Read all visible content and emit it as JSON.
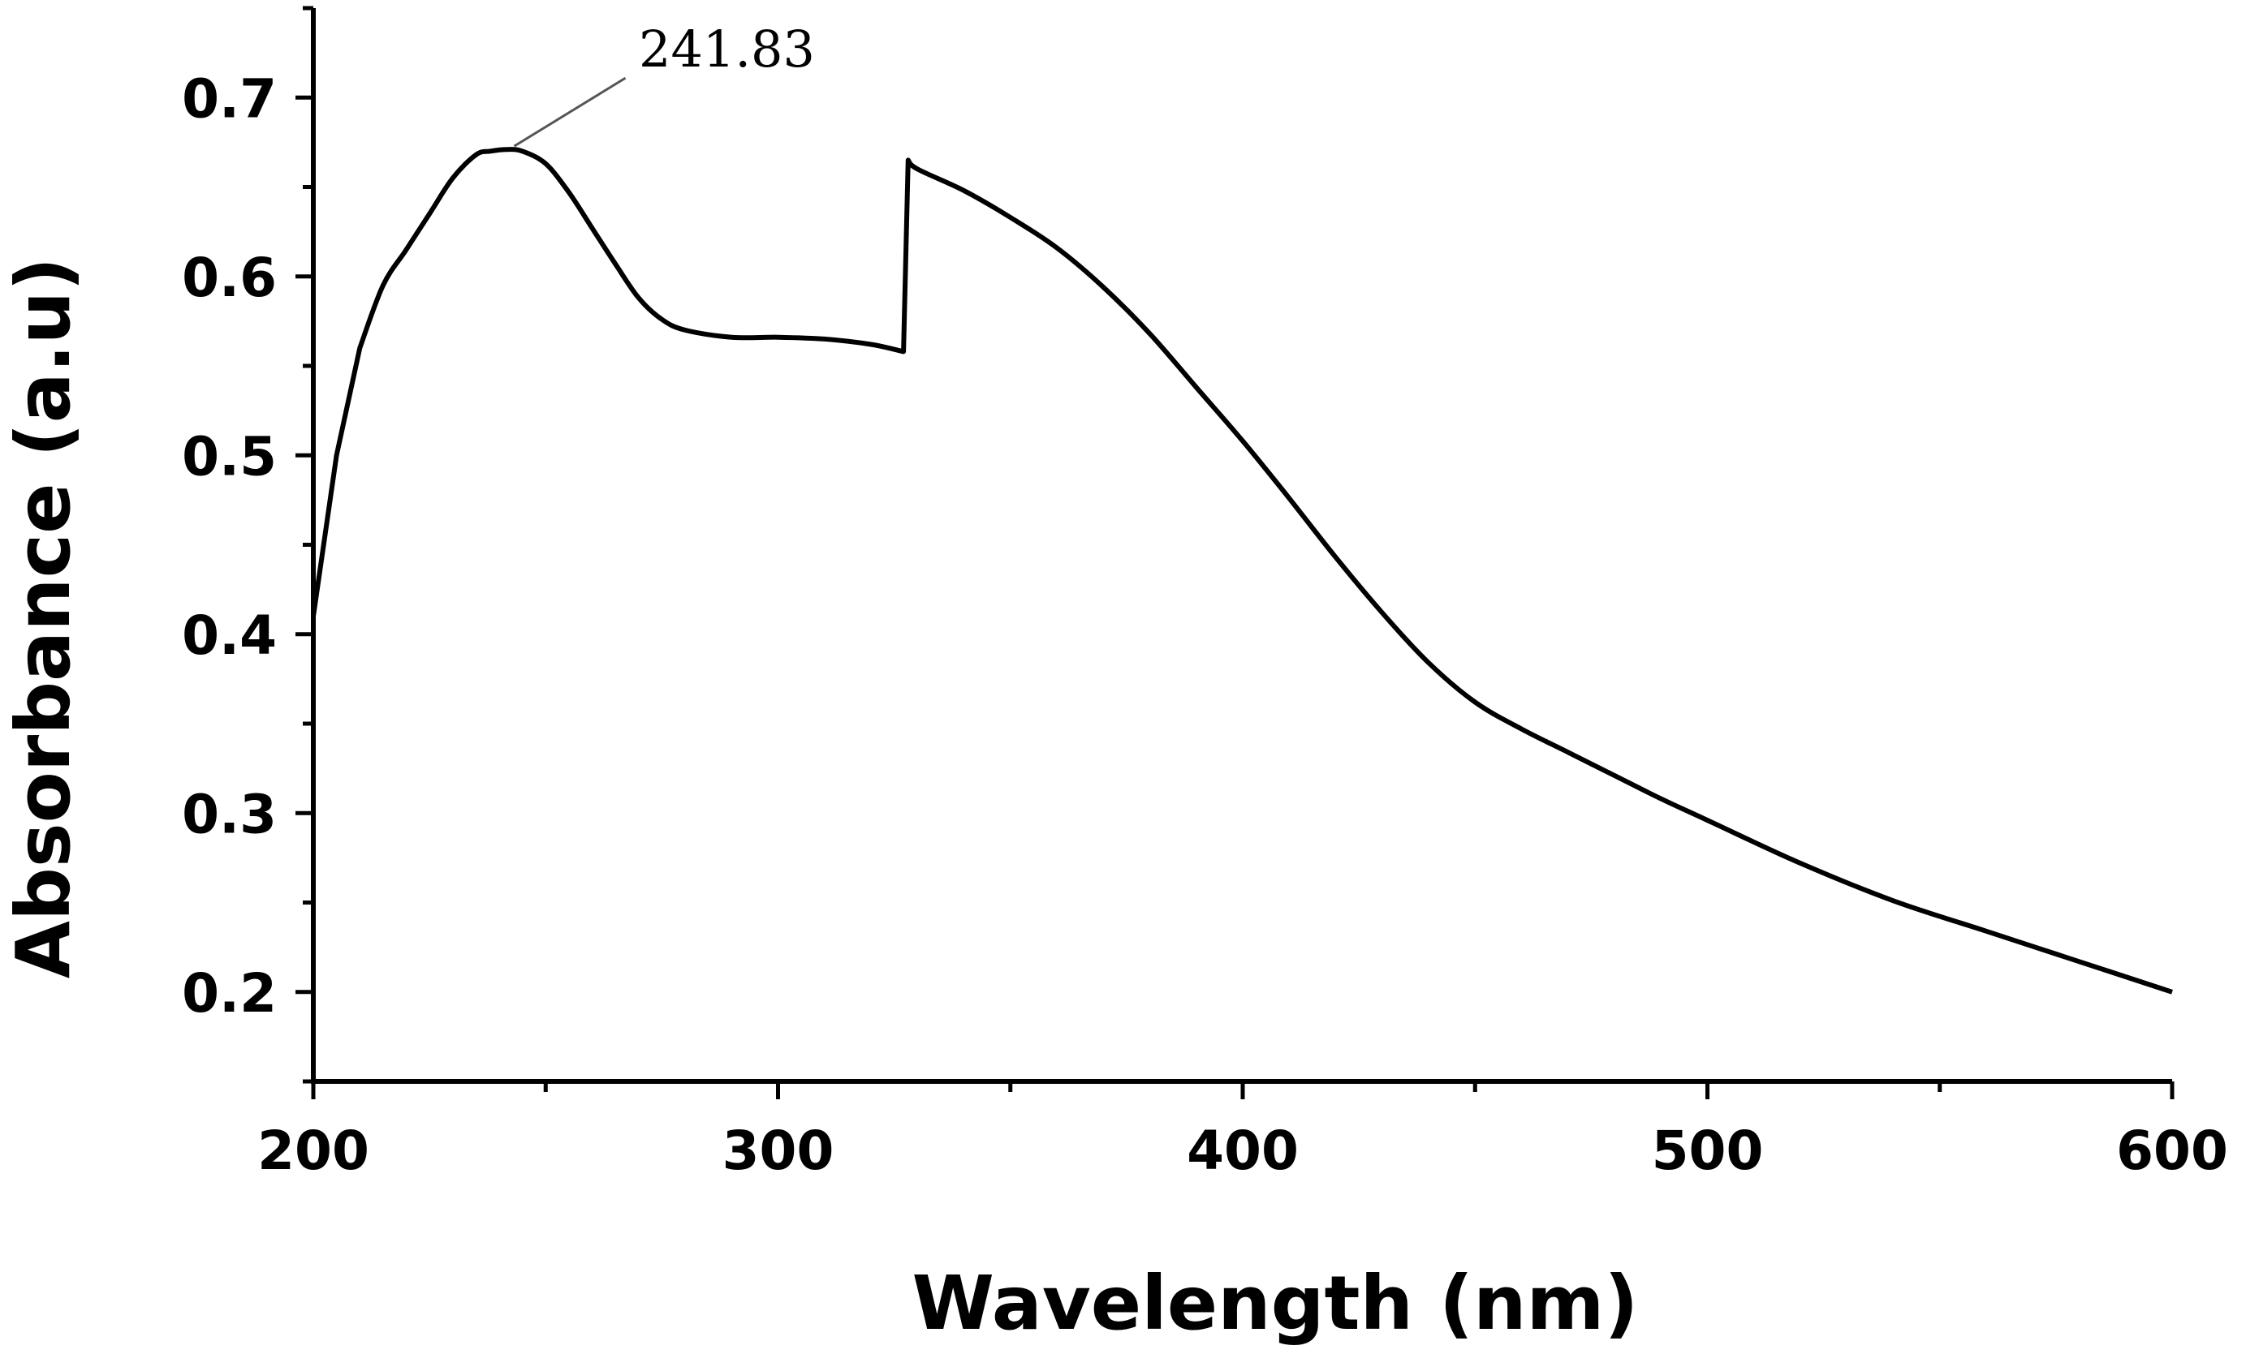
{
  "chart_data": {
    "type": "line",
    "xlabel": "Wavelength (nm)",
    "ylabel": "Absorbance (a.u)",
    "xlim": [
      200,
      600
    ],
    "ylim": [
      0.15,
      0.75
    ],
    "x_ticks": [
      200,
      300,
      400,
      500,
      600
    ],
    "x_tick_labels": [
      "200",
      "300",
      "400",
      "500",
      "600"
    ],
    "y_ticks": [
      0.2,
      0.3,
      0.4,
      0.5,
      0.6,
      0.7
    ],
    "y_tick_labels": [
      "0.2",
      "0.3",
      "0.4",
      "0.5",
      "0.6",
      "0.7"
    ],
    "grid": false,
    "line_color": "#000000",
    "series": [
      {
        "x": [
          200,
          205,
          210,
          215,
          220,
          225,
          230,
          235,
          238,
          241.83,
          245,
          250,
          255,
          260,
          265,
          270,
          275,
          280,
          290,
          300,
          310,
          320,
          327,
          328,
          330,
          340,
          350,
          360,
          370,
          380,
          390,
          400,
          410,
          420,
          430,
          440,
          450,
          460,
          470,
          480,
          490,
          500,
          520,
          540,
          560,
          580,
          600
        ],
        "y": [
          0.41,
          0.5,
          0.56,
          0.595,
          0.615,
          0.635,
          0.655,
          0.668,
          0.67,
          0.671,
          0.67,
          0.663,
          0.647,
          0.627,
          0.607,
          0.588,
          0.576,
          0.57,
          0.566,
          0.566,
          0.565,
          0.562,
          0.558,
          0.665,
          0.66,
          0.648,
          0.633,
          0.616,
          0.594,
          0.568,
          0.538,
          0.508,
          0.476,
          0.443,
          0.412,
          0.384,
          0.362,
          0.347,
          0.334,
          0.321,
          0.308,
          0.296,
          0.272,
          0.251,
          0.234,
          0.217,
          0.2
        ]
      }
    ],
    "annotations": [
      {
        "text": "241.83",
        "x": 241.83,
        "y": 0.671
      }
    ]
  }
}
